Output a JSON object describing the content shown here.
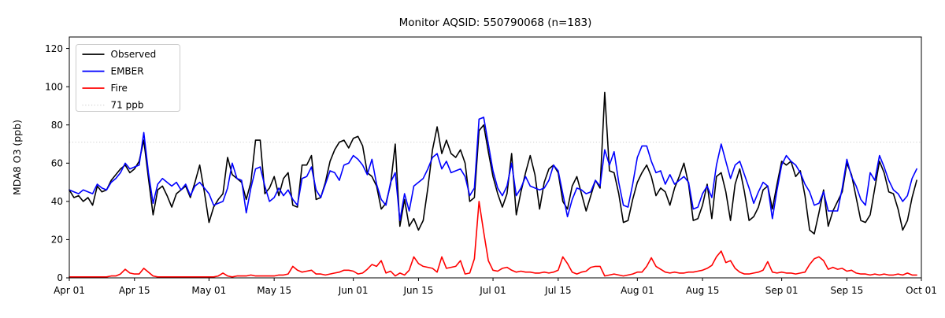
{
  "chart_data": {
    "type": "line",
    "title": "Monitor AQSID: 550790068 (n=183)",
    "ylabel": "MDA8 O3 (ppb)",
    "xlabel": "",
    "ylim": [
      0,
      126
    ],
    "yticks": [
      0,
      20,
      40,
      60,
      80,
      100,
      120
    ],
    "xticks": [
      {
        "day": 0,
        "label": "Apr 01"
      },
      {
        "day": 14,
        "label": "Apr 15"
      },
      {
        "day": 30,
        "label": "May 01"
      },
      {
        "day": 44,
        "label": "May 15"
      },
      {
        "day": 61,
        "label": "Jun 01"
      },
      {
        "day": 75,
        "label": "Jun 15"
      },
      {
        "day": 91,
        "label": "Jul 01"
      },
      {
        "day": 105,
        "label": "Jul 15"
      },
      {
        "day": 122,
        "label": "Aug 01"
      },
      {
        "day": 136,
        "label": "Aug 15"
      },
      {
        "day": 153,
        "label": "Sep 01"
      },
      {
        "day": 167,
        "label": "Sep 15"
      },
      {
        "day": 183,
        "label": "Oct 01"
      }
    ],
    "x_range_days": 183,
    "n_points": 183,
    "grid": false,
    "legend_position": "upper left",
    "threshold": {
      "value": 71,
      "label": "71 ppb",
      "color": "#d3d3d3",
      "style": "dotted"
    },
    "series": [
      {
        "name": "Observed",
        "color": "#000000",
        "values": [
          46,
          42,
          43,
          40,
          42,
          38,
          48,
          45,
          46,
          51,
          54,
          57,
          59,
          55,
          57,
          61,
          72,
          52,
          33,
          46,
          48,
          43,
          37,
          44,
          46,
          48,
          42,
          50,
          59,
          45,
          29,
          37,
          41,
          44,
          63,
          54,
          52,
          50,
          41,
          50,
          72,
          72,
          44,
          47,
          53,
          43,
          52,
          55,
          38,
          37,
          59,
          59,
          64,
          41,
          42,
          50,
          61,
          67,
          71,
          72,
          68,
          73,
          74,
          69,
          55,
          53,
          48,
          36,
          39,
          49,
          70,
          27,
          41,
          27,
          31,
          25,
          30,
          47,
          67,
          79,
          65,
          72,
          65,
          63,
          67,
          60,
          40,
          42,
          77,
          80,
          66,
          53,
          44,
          37,
          44,
          65,
          33,
          45,
          55,
          64,
          54,
          36,
          50,
          57,
          59,
          55,
          40,
          36,
          48,
          53,
          44,
          35,
          43,
          51,
          47,
          97,
          56,
          55,
          44,
          29,
          30,
          41,
          50,
          55,
          59,
          53,
          43,
          47,
          45,
          38,
          47,
          53,
          60,
          49,
          30,
          31,
          38,
          49,
          31,
          53,
          55,
          45,
          30,
          49,
          57,
          45,
          30,
          32,
          37,
          46,
          48,
          36,
          49,
          61,
          59,
          61,
          53,
          56,
          43,
          25,
          23,
          34,
          46,
          27,
          35,
          40,
          45,
          60,
          54,
          42,
          30,
          29,
          33,
          47,
          61,
          55,
          45,
          44,
          36,
          25,
          30,
          42,
          51
        ]
      },
      {
        "name": "EMBER",
        "color": "#0000ff",
        "values": [
          46,
          45,
          44,
          46,
          45,
          44,
          49,
          47,
          46,
          50,
          52,
          55,
          60,
          57,
          58,
          59,
          76,
          55,
          39,
          49,
          52,
          50,
          48,
          50,
          46,
          49,
          43,
          48,
          50,
          47,
          44,
          38,
          39,
          40,
          47,
          60,
          52,
          51,
          34,
          47,
          57,
          58,
          48,
          40,
          42,
          47,
          43,
          46,
          41,
          38,
          52,
          53,
          58,
          46,
          42,
          49,
          56,
          55,
          51,
          59,
          60,
          64,
          62,
          59,
          54,
          62,
          49,
          41,
          38,
          50,
          55,
          30,
          44,
          35,
          48,
          50,
          52,
          57,
          63,
          65,
          57,
          61,
          55,
          56,
          57,
          53,
          43,
          47,
          83,
          84,
          70,
          56,
          47,
          43,
          48,
          60,
          43,
          47,
          53,
          48,
          47,
          46,
          47,
          51,
          59,
          56,
          44,
          32,
          41,
          47,
          46,
          44,
          45,
          51,
          48,
          67,
          59,
          66,
          50,
          38,
          37,
          49,
          63,
          69,
          69,
          61,
          55,
          56,
          49,
          54,
          49,
          51,
          53,
          50,
          36,
          37,
          44,
          48,
          42,
          59,
          70,
          61,
          52,
          59,
          61,
          54,
          47,
          39,
          45,
          50,
          48,
          31,
          46,
          59,
          64,
          61,
          59,
          55,
          49,
          45,
          38,
          39,
          45,
          35,
          35,
          35,
          47,
          62,
          53,
          48,
          41,
          38,
          55,
          51,
          64,
          58,
          51,
          46,
          44,
          40,
          43,
          52,
          57
        ]
      },
      {
        "name": "Fire",
        "color": "#ff0000",
        "values": [
          0.5,
          0.5,
          0.5,
          0.5,
          0.5,
          0.5,
          0.5,
          0.5,
          0.5,
          1,
          1,
          2,
          4.5,
          2.5,
          2,
          2,
          5,
          3,
          1,
          0.5,
          0.5,
          0.5,
          0.5,
          0.5,
          0.5,
          0.5,
          0.5,
          0.5,
          0.5,
          0.5,
          0.5,
          0.5,
          1,
          2.5,
          1,
          0.5,
          1,
          1,
          1,
          1.5,
          1,
          1,
          1,
          1,
          1,
          1.5,
          1.5,
          2,
          6,
          4,
          3,
          3.5,
          4,
          2,
          2,
          1.5,
          2,
          2.5,
          3,
          4,
          4,
          3.5,
          2,
          2.5,
          4.5,
          7,
          6,
          9,
          2.5,
          3.5,
          1,
          2.5,
          1.5,
          4,
          11,
          7.5,
          6,
          5.5,
          5,
          3,
          11,
          5,
          5.5,
          6,
          9,
          2,
          2.5,
          10,
          40,
          24,
          9,
          4,
          3.5,
          5,
          5.5,
          4,
          3,
          3.5,
          3,
          3,
          2.5,
          2.5,
          3,
          2.5,
          3,
          4,
          11,
          7.5,
          3,
          2,
          3,
          3.5,
          5.5,
          6,
          6,
          1,
          1.5,
          2,
          1.5,
          1,
          1.5,
          2,
          3,
          3,
          6,
          10.5,
          6,
          4.5,
          3,
          2.5,
          3,
          2.5,
          2.5,
          3,
          3,
          3.5,
          4,
          5,
          6.5,
          11,
          14,
          8,
          9,
          5,
          3,
          2,
          2,
          2.5,
          3,
          4,
          8.5,
          3,
          2.5,
          3,
          2.5,
          2.5,
          2,
          2.5,
          3,
          7,
          10,
          11,
          9,
          4.5,
          5.5,
          4.5,
          5,
          3.5,
          4,
          2.5,
          2,
          2,
          1.5,
          2,
          1.5,
          2,
          1.5,
          1.5,
          2,
          1.5,
          2.5,
          1.5,
          1.5
        ]
      }
    ]
  }
}
